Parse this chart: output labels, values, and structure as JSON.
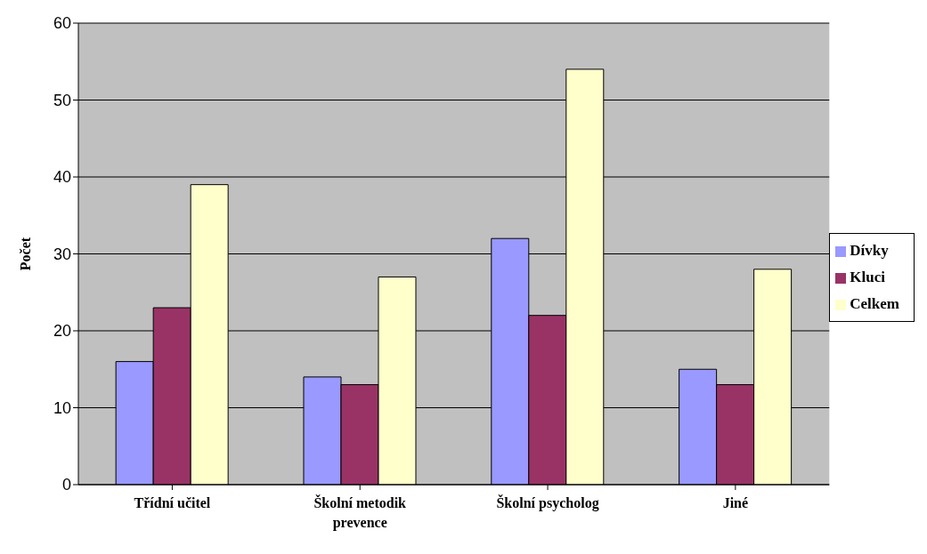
{
  "chart_data": {
    "type": "bar",
    "ylabel": "Počet",
    "categories": [
      "Třídní učitel",
      "Školní metodik prevence",
      "Školní psycholog",
      "Jiné"
    ],
    "series": [
      {
        "name": "Dívky",
        "color": "#9999ff",
        "values": [
          16,
          14,
          32,
          15
        ]
      },
      {
        "name": "Kluci",
        "color": "#993366",
        "values": [
          23,
          13,
          22,
          13
        ]
      },
      {
        "name": "Celkem",
        "color": "#ffffcc",
        "values": [
          39,
          27,
          54,
          28
        ]
      }
    ],
    "ylim": [
      0,
      60
    ],
    "yticks": [
      0,
      10,
      20,
      30,
      40,
      50,
      60
    ],
    "grid": "y",
    "legend": "right"
  }
}
